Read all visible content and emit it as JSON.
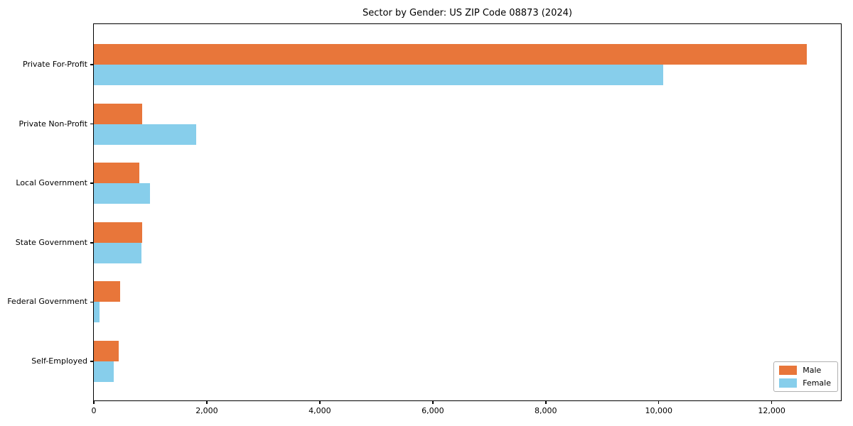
{
  "chart_data": {
    "type": "bar",
    "orientation": "horizontal",
    "title": "Sector by Gender: US ZIP Code 08873 (2024)",
    "categories": [
      "Private For-Profit",
      "Private Non-Profit",
      "Local Government",
      "State Government",
      "Federal Government",
      "Self-Employed"
    ],
    "series": [
      {
        "name": "Male",
        "color": "#e8763a",
        "values": [
          12650,
          860,
          810,
          860,
          470,
          440
        ]
      },
      {
        "name": "Female",
        "color": "#87ceeb",
        "values": [
          10100,
          1820,
          1000,
          850,
          100,
          350
        ]
      }
    ],
    "xlabel": "",
    "ylabel": "",
    "xlim": [
      0,
      13250
    ],
    "x_ticks": [
      0,
      2000,
      4000,
      6000,
      8000,
      10000,
      12000
    ],
    "x_tick_labels": [
      "0",
      "2,000",
      "4,000",
      "6,000",
      "8,000",
      "10,000",
      "12,000"
    ],
    "grid": false,
    "legend_position": "lower right",
    "plot_border_color": "#000000",
    "background_color": "#ffffff"
  }
}
